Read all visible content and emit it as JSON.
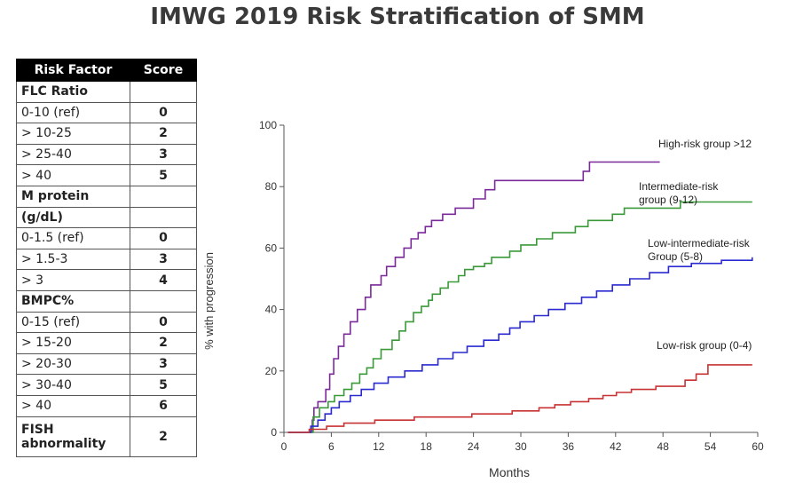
{
  "title": "IMWG 2019 Risk Stratification of SMM",
  "table": {
    "headers": [
      "Risk Factor",
      "Score"
    ],
    "rows": [
      {
        "type": "section",
        "label": "FLC Ratio",
        "score": ""
      },
      {
        "type": "item",
        "label": "0-10 (ref)",
        "score": "0"
      },
      {
        "type": "item",
        "label": "> 10-25",
        "score": "2"
      },
      {
        "type": "item",
        "label": "> 25-40",
        "score": "3"
      },
      {
        "type": "item",
        "label": " > 40",
        "score": "5"
      },
      {
        "type": "section",
        "label": "M protein",
        "score": ""
      },
      {
        "type": "section",
        "label": "(g/dL)",
        "score": ""
      },
      {
        "type": "item",
        "label": "0-1.5 (ref)",
        "score": "0"
      },
      {
        "type": "item",
        "label": "> 1.5-3",
        "score": "3"
      },
      {
        "type": "item",
        "label": "> 3",
        "score": "4"
      },
      {
        "type": "section",
        "label": "BMPC%",
        "score": ""
      },
      {
        "type": "item",
        "label": "0-15 (ref)",
        "score": "0"
      },
      {
        "type": "item",
        "label": "> 15-20",
        "score": "2"
      },
      {
        "type": "item",
        "label": "> 20-30",
        "score": "3"
      },
      {
        "type": "item",
        "label": "> 30-40",
        "score": "5"
      },
      {
        "type": "item",
        "label": "> 40",
        "score": "6"
      },
      {
        "type": "section-tall",
        "label": "FISH abnormality",
        "score": "2"
      }
    ]
  },
  "chart_data": {
    "type": "line",
    "xlabel": "Months",
    "ylabel": "% with progression",
    "xlim": [
      0,
      60
    ],
    "ylim": [
      0,
      100
    ],
    "xticks": [
      0,
      6,
      12,
      18,
      24,
      30,
      36,
      42,
      48,
      54,
      60
    ],
    "yticks": [
      0,
      20,
      40,
      60,
      80,
      100
    ],
    "series": [
      {
        "name": "High-risk group >12",
        "color": "#7b2a9a",
        "points": [
          [
            0.5,
            0
          ],
          [
            3.3,
            0
          ],
          [
            3.6,
            4
          ],
          [
            3.8,
            8
          ],
          [
            4.3,
            10
          ],
          [
            5.3,
            14
          ],
          [
            5.8,
            19
          ],
          [
            6.3,
            24
          ],
          [
            6.9,
            28
          ],
          [
            7.6,
            32
          ],
          [
            8.4,
            36
          ],
          [
            9.3,
            40
          ],
          [
            10.3,
            44
          ],
          [
            11.0,
            48
          ],
          [
            12.3,
            51
          ],
          [
            13.0,
            54
          ],
          [
            14.1,
            57
          ],
          [
            15.2,
            60
          ],
          [
            16.1,
            63
          ],
          [
            17.0,
            65
          ],
          [
            17.9,
            67
          ],
          [
            18.7,
            69
          ],
          [
            20.1,
            71
          ],
          [
            21.7,
            73
          ],
          [
            24.0,
            76
          ],
          [
            25.5,
            79
          ],
          [
            26.7,
            82
          ],
          [
            30.0,
            82
          ],
          [
            33.0,
            82
          ],
          [
            37.9,
            85
          ],
          [
            38.7,
            88
          ],
          [
            40.9,
            88
          ],
          [
            47.6,
            88
          ]
        ]
      },
      {
        "name": "Intermediate-risk group (9-12)",
        "color": "#3a9a3a",
        "points": [
          [
            0.5,
            0
          ],
          [
            3.0,
            0
          ],
          [
            3.7,
            5
          ],
          [
            4.5,
            8
          ],
          [
            5.6,
            10
          ],
          [
            6.4,
            12
          ],
          [
            7.6,
            14
          ],
          [
            8.6,
            16
          ],
          [
            9.6,
            19
          ],
          [
            10.5,
            21
          ],
          [
            11.3,
            24
          ],
          [
            12.3,
            27
          ],
          [
            13.7,
            30
          ],
          [
            14.6,
            33
          ],
          [
            15.4,
            36
          ],
          [
            16.4,
            39
          ],
          [
            17.4,
            41
          ],
          [
            18.3,
            43
          ],
          [
            18.8,
            45
          ],
          [
            19.8,
            47
          ],
          [
            20.8,
            49
          ],
          [
            22.1,
            51
          ],
          [
            22.9,
            53
          ],
          [
            24.0,
            54
          ],
          [
            25.4,
            55
          ],
          [
            26.3,
            57
          ],
          [
            28.6,
            59
          ],
          [
            30.0,
            61
          ],
          [
            32.0,
            63
          ],
          [
            34.0,
            65
          ],
          [
            36.9,
            67
          ],
          [
            38.5,
            69
          ],
          [
            41.6,
            71
          ],
          [
            43.1,
            73
          ],
          [
            50.2,
            75
          ],
          [
            59.3,
            75
          ]
        ]
      },
      {
        "name": "Low-intermediate-risk Group (5-8)",
        "color": "#2a2ad0",
        "points": [
          [
            0.5,
            0
          ],
          [
            2.0,
            0
          ],
          [
            3.4,
            2
          ],
          [
            4.3,
            4
          ],
          [
            5.2,
            6
          ],
          [
            6.0,
            8
          ],
          [
            7.0,
            10
          ],
          [
            8.4,
            12
          ],
          [
            9.8,
            14
          ],
          [
            11.4,
            16
          ],
          [
            13.2,
            18
          ],
          [
            15.3,
            20
          ],
          [
            17.5,
            22
          ],
          [
            19.5,
            24
          ],
          [
            21.4,
            26
          ],
          [
            23.2,
            28
          ],
          [
            25.3,
            30
          ],
          [
            27.2,
            32
          ],
          [
            28.6,
            34
          ],
          [
            29.9,
            36
          ],
          [
            31.7,
            38
          ],
          [
            33.5,
            40
          ],
          [
            35.6,
            42
          ],
          [
            37.7,
            44
          ],
          [
            39.6,
            46
          ],
          [
            41.6,
            48
          ],
          [
            43.8,
            50
          ],
          [
            46.3,
            52
          ],
          [
            48.7,
            54
          ],
          [
            51.6,
            55
          ],
          [
            55.4,
            56
          ],
          [
            59.3,
            57
          ]
        ]
      },
      {
        "name": "Low-risk group (0-4)",
        "color": "#c83232",
        "points": [
          [
            0.5,
            0
          ],
          [
            2.6,
            0
          ],
          [
            3.2,
            1
          ],
          [
            5.4,
            2
          ],
          [
            7.6,
            3
          ],
          [
            11.5,
            4
          ],
          [
            16.5,
            5
          ],
          [
            23.8,
            6
          ],
          [
            28.9,
            7
          ],
          [
            32.3,
            8
          ],
          [
            34.3,
            9
          ],
          [
            36.3,
            10
          ],
          [
            38.6,
            11
          ],
          [
            40.4,
            12
          ],
          [
            42.1,
            13
          ],
          [
            44.0,
            14
          ],
          [
            47.1,
            15
          ],
          [
            50.8,
            17
          ],
          [
            52.2,
            19
          ],
          [
            53.7,
            22
          ],
          [
            59.3,
            22
          ]
        ]
      }
    ]
  }
}
